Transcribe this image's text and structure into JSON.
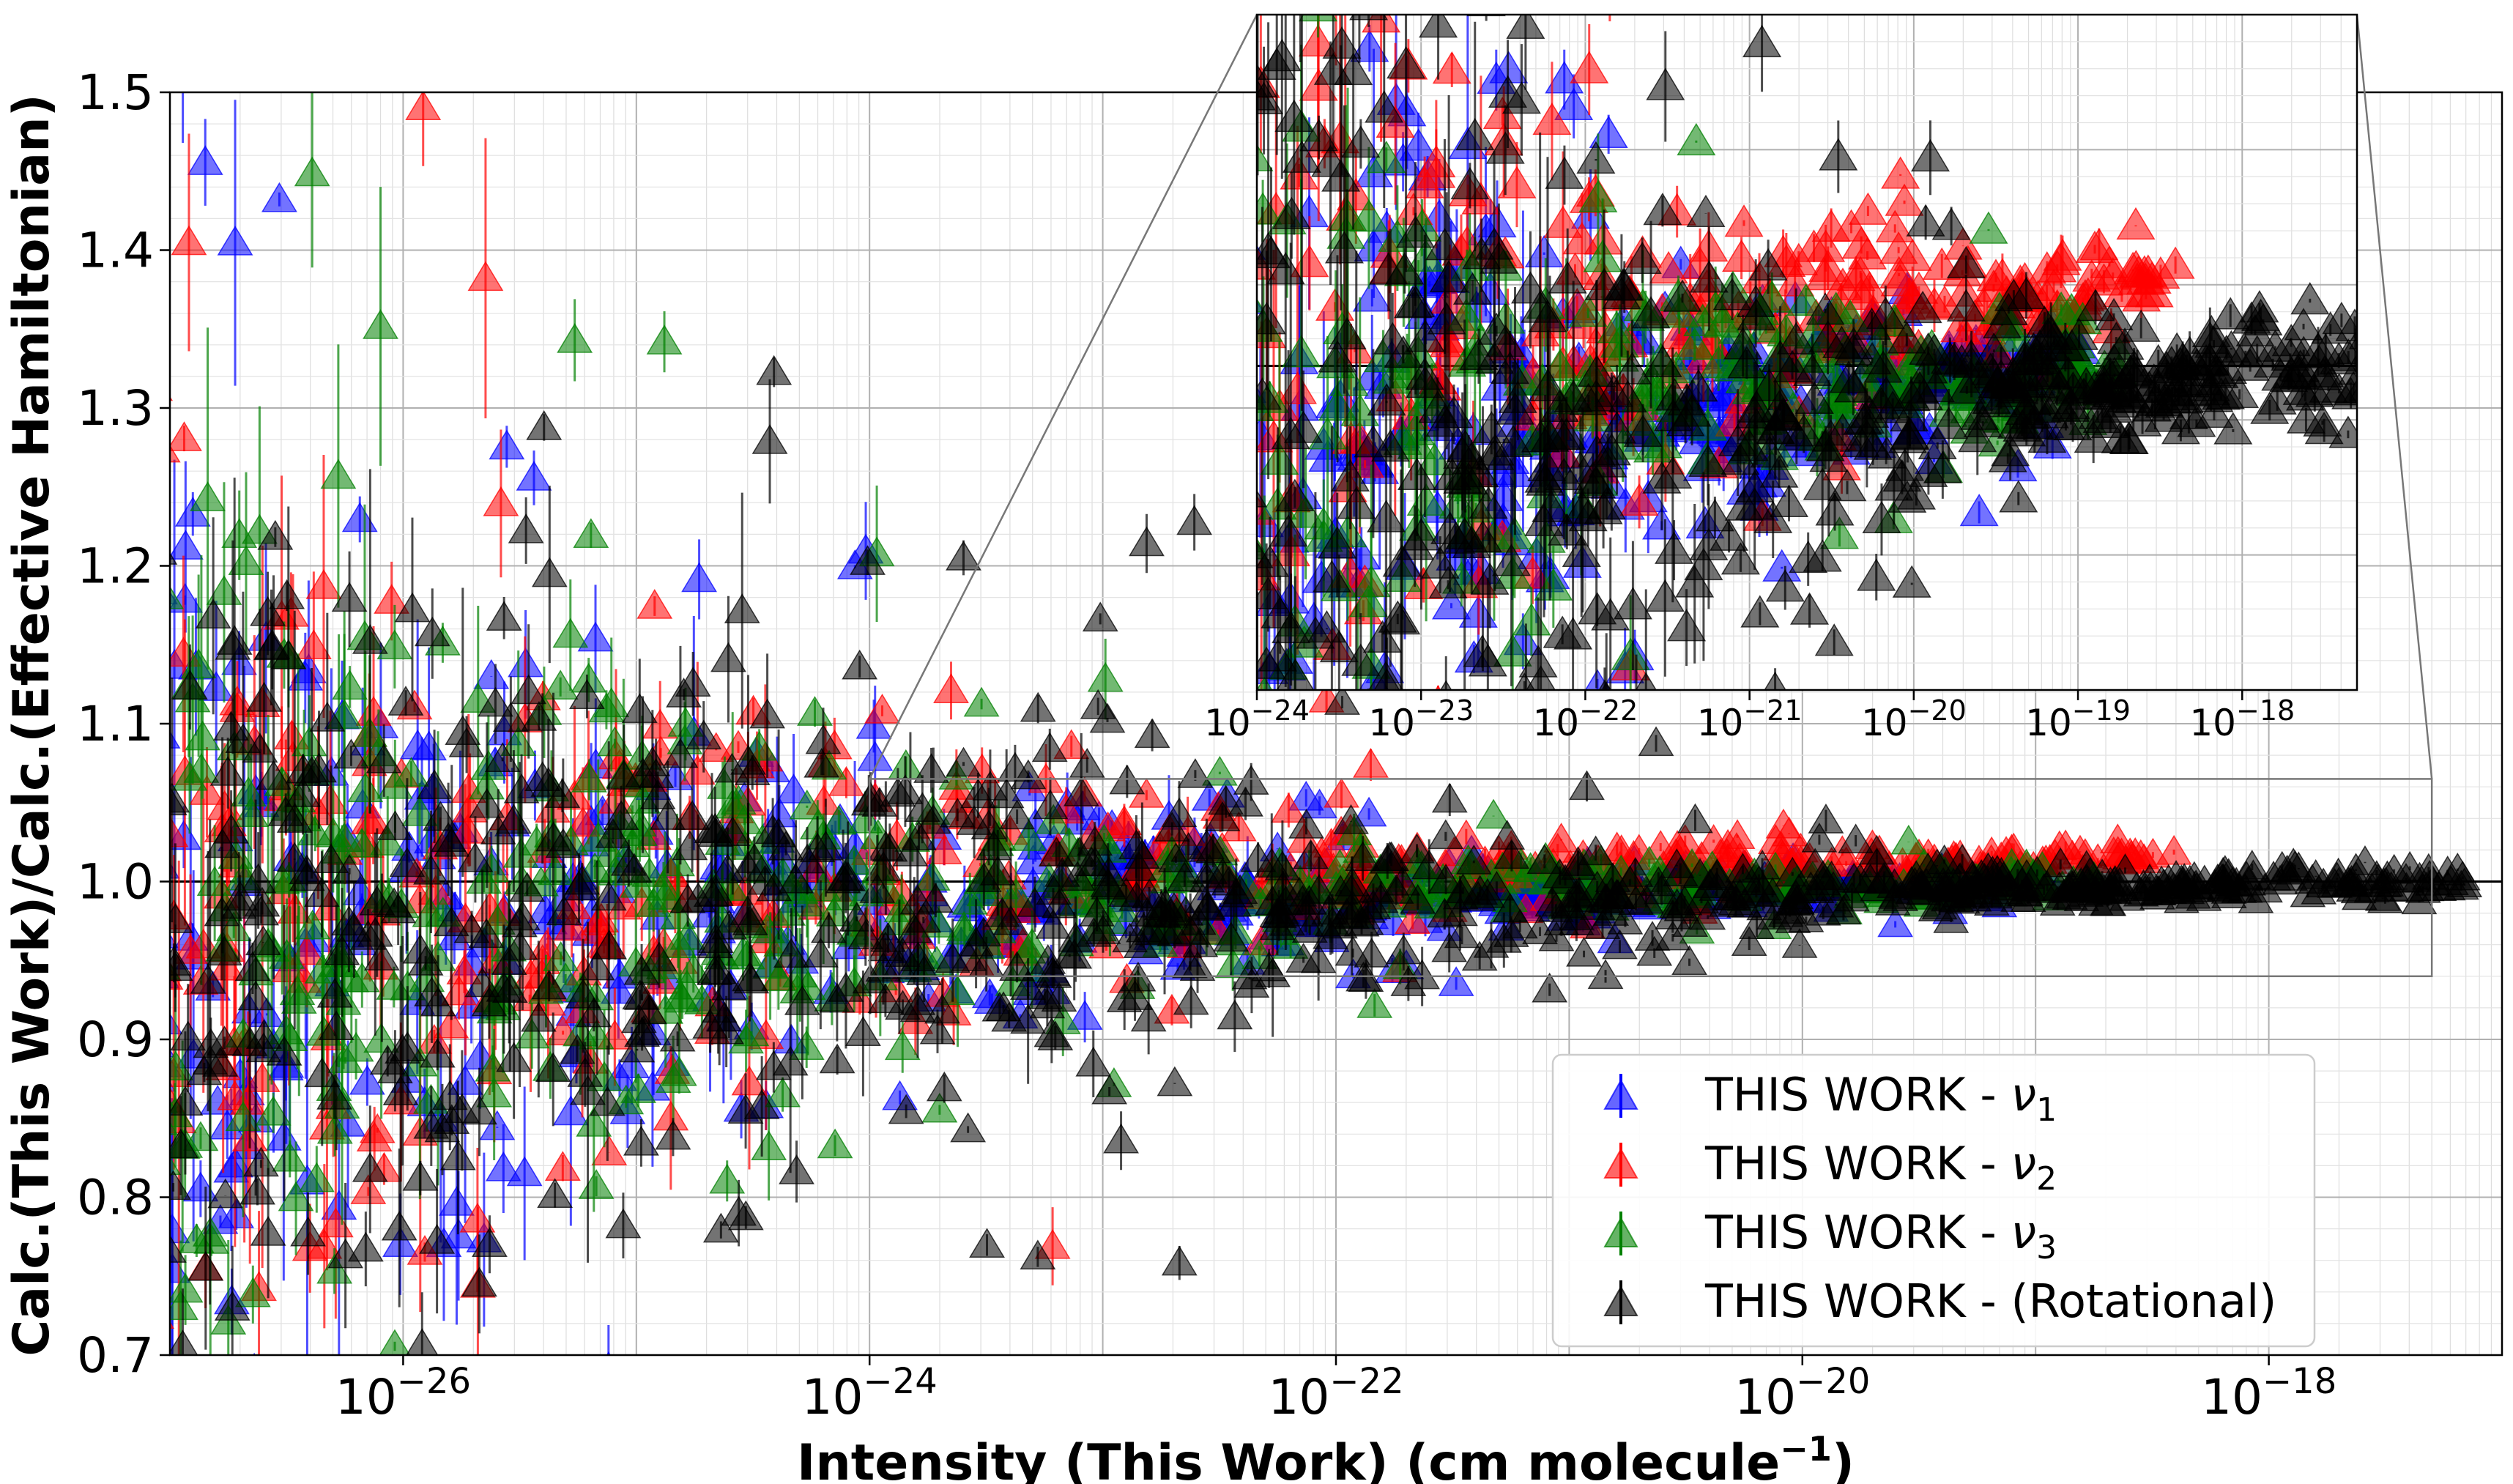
{
  "chart_data": [
    {
      "type": "scatter",
      "title": "",
      "xlabel": "Intensity (This Work) (cm molecule",
      "xlabel_sup": "−1",
      "xlabel_close": ")",
      "ylabel": "Calc.(This Work)/Calc.(Effective Hamiltonian)",
      "xscale": "log",
      "xlim": [
        1e-27,
        1e-17
      ],
      "ylim": [
        0.7,
        1.5
      ],
      "grid": true,
      "x_ticks": [
        {
          "value": 1e-26,
          "base": "10",
          "exp": "−26"
        },
        {
          "value": 1e-24,
          "base": "10",
          "exp": "−24"
        },
        {
          "value": 1e-22,
          "base": "10",
          "exp": "−22"
        },
        {
          "value": 1e-20,
          "base": "10",
          "exp": "−20"
        },
        {
          "value": 1e-18,
          "base": "10",
          "exp": "−18"
        }
      ],
      "y_ticks": [
        {
          "value": 0.7,
          "label": "0.7"
        },
        {
          "value": 0.8,
          "label": "0.8"
        },
        {
          "value": 0.9,
          "label": "0.9"
        },
        {
          "value": 1.0,
          "label": "1.0"
        },
        {
          "value": 1.1,
          "label": "1.1"
        },
        {
          "value": 1.2,
          "label": "1.2"
        },
        {
          "value": 1.3,
          "label": "1.3"
        },
        {
          "value": 1.4,
          "label": "1.4"
        },
        {
          "value": 1.5,
          "label": "1.5"
        }
      ],
      "reference_line_y": 1.0,
      "legend": {
        "placement": "bottom-right",
        "entries": [
          {
            "text": "THIS WORK - ",
            "symbol": "ν",
            "sub": "1",
            "suffix": "",
            "color": "#0000ff"
          },
          {
            "text": "THIS WORK - ",
            "symbol": "ν",
            "sub": "2",
            "suffix": "",
            "color": "#ff0000"
          },
          {
            "text": "THIS WORK - ",
            "symbol": "ν",
            "sub": "3",
            "suffix": "",
            "color": "#008000"
          },
          {
            "text": "THIS WORK - (Rotational)",
            "symbol": "",
            "sub": "",
            "suffix": "",
            "color": "#000000"
          }
        ]
      },
      "series": [
        {
          "color": "#0000ff",
          "marker": "triangle-up",
          "x_range": [
            3e-28,
            1.2e-19
          ],
          "center_low": 0.975,
          "center_high": 1.0
        },
        {
          "color": "#ff0000",
          "marker": "triangle-up",
          "x_range": [
            3e-28,
            4e-19
          ],
          "center_low": 0.985,
          "center_high": 1.017
        },
        {
          "color": "#008000",
          "marker": "triangle-up",
          "x_range": [
            3e-28,
            1.8e-19
          ],
          "center_low": 0.98,
          "center_high": 1.0
        },
        {
          "color": "#000000",
          "marker": "triangle-up",
          "x_range": [
            3e-28,
            7e-18
          ],
          "center_low": 0.975,
          "center_high": 1.0
        }
      ],
      "error_bars": true
    },
    {
      "type": "scatter",
      "title": "",
      "role": "zoom inset",
      "xscale": "log",
      "xlim": [
        1e-24,
        5e-18
      ],
      "ylim": [
        0.94,
        1.065
      ],
      "grid": true,
      "x_ticks": [
        {
          "value": 1e-24,
          "base": "10",
          "exp": "−24"
        },
        {
          "value": 1e-23,
          "base": "10",
          "exp": "−23"
        },
        {
          "value": 1e-22,
          "base": "10",
          "exp": "−22"
        },
        {
          "value": 1e-21,
          "base": "10",
          "exp": "−21"
        },
        {
          "value": 1e-20,
          "base": "10",
          "exp": "−20"
        },
        {
          "value": 1e-19,
          "base": "10",
          "exp": "−19"
        },
        {
          "value": 1e-18,
          "base": "10",
          "exp": "−18"
        }
      ],
      "reference_line_y": 1.0
    }
  ]
}
